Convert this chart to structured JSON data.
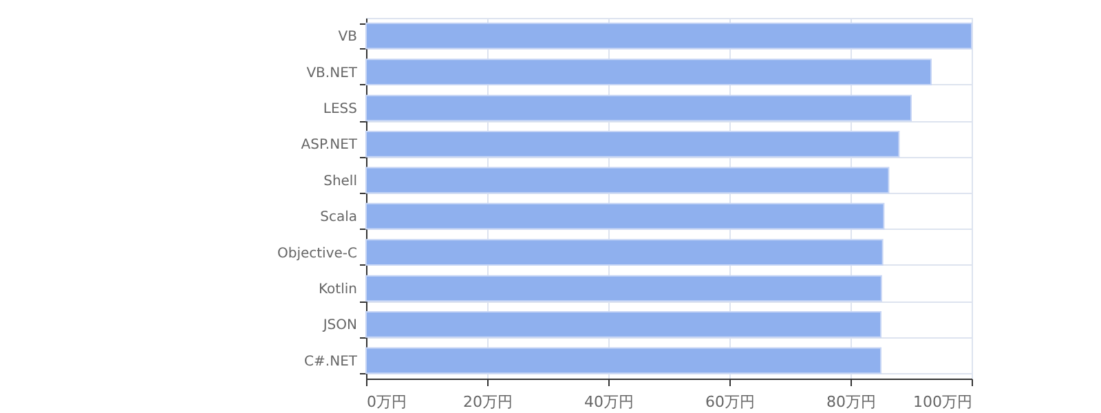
{
  "chart_data": {
    "type": "bar",
    "orientation": "horizontal",
    "categories": [
      "VB",
      "VB.NET",
      "LESS",
      "ASP.NET",
      "Shell",
      "Scala",
      "Objective-C",
      "Kotlin",
      "JSON",
      "C#.NET"
    ],
    "values": [
      100,
      93.3,
      90,
      88,
      86.3,
      85.5,
      85.3,
      85.1,
      85,
      85
    ],
    "color": "#8fb0ee",
    "xlim": [
      0,
      100
    ],
    "xticks": [
      {
        "value": 0,
        "label": "0万円"
      },
      {
        "value": 20,
        "label": "20万円"
      },
      {
        "value": 40,
        "label": "40万円"
      },
      {
        "value": 60,
        "label": "60万円"
      },
      {
        "value": 80,
        "label": "80万円"
      },
      {
        "value": 100,
        "label": "100万円"
      }
    ],
    "grid": true
  }
}
